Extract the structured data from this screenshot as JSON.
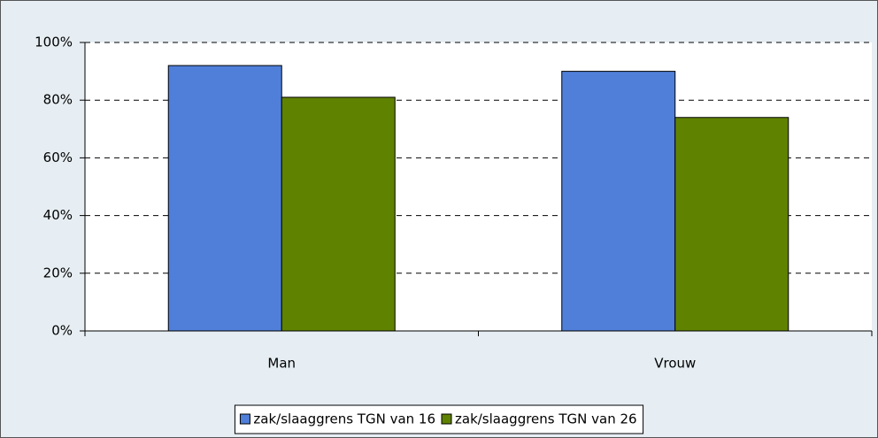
{
  "chart_data": {
    "type": "bar",
    "categories": [
      "Man",
      "Vrouw"
    ],
    "series": [
      {
        "name": "zak/slaaggrens TGN van 16",
        "color": "#4f7fd9",
        "values": [
          92,
          90
        ]
      },
      {
        "name": "zak/slaaggrens TGN van 26",
        "color": "#5f8200",
        "values": [
          81,
          74
        ]
      }
    ],
    "ylim": [
      0,
      100
    ],
    "yticks": [
      {
        "value": 0,
        "label": "0%"
      },
      {
        "value": 20,
        "label": "20%"
      },
      {
        "value": 40,
        "label": "40%"
      },
      {
        "value": 60,
        "label": "60%"
      },
      {
        "value": 80,
        "label": "80%"
      },
      {
        "value": 100,
        "label": "100%"
      }
    ],
    "grid": true,
    "legend": "bottom"
  }
}
